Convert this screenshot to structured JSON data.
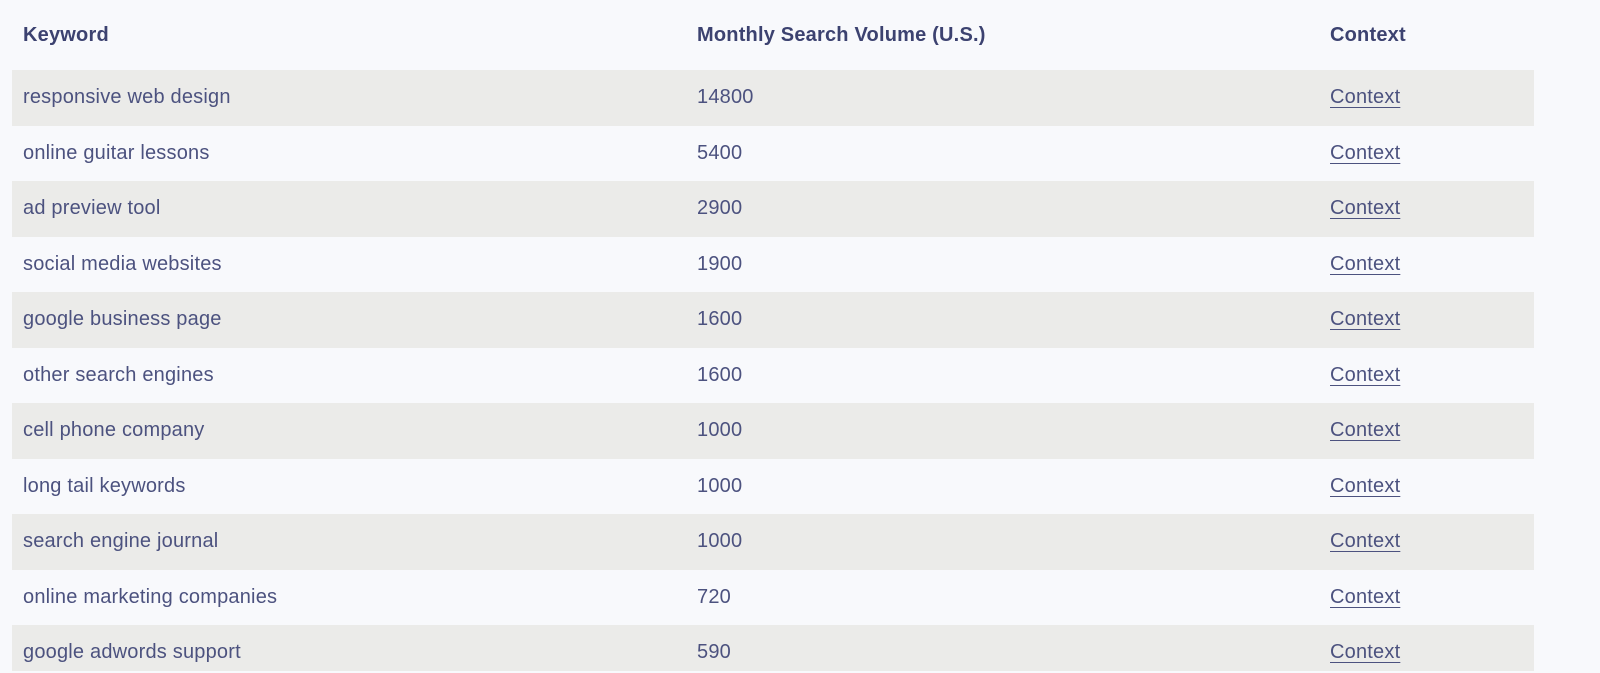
{
  "page": {
    "background": "#f8f9fc"
  },
  "table": {
    "colors": {
      "background": "#f8f9fc",
      "stripe": "#ebebe9",
      "header_text": "#3c4270",
      "row_text": "#4c527f"
    },
    "columns": [
      {
        "label": "Keyword"
      },
      {
        "label": "Monthly Search Volume (U.S.)"
      },
      {
        "label": "Context"
      }
    ],
    "rows": [
      {
        "keyword": "responsive web design",
        "volume": "14800",
        "context_label": "Context"
      },
      {
        "keyword": "online guitar lessons",
        "volume": "5400",
        "context_label": "Context"
      },
      {
        "keyword": "ad preview tool",
        "volume": "2900",
        "context_label": "Context"
      },
      {
        "keyword": "social media websites",
        "volume": "1900",
        "context_label": "Context"
      },
      {
        "keyword": "google business page",
        "volume": "1600",
        "context_label": "Context"
      },
      {
        "keyword": "other search engines",
        "volume": "1600",
        "context_label": "Context"
      },
      {
        "keyword": "cell phone company",
        "volume": "1000",
        "context_label": "Context"
      },
      {
        "keyword": "long tail keywords",
        "volume": "1000",
        "context_label": "Context"
      },
      {
        "keyword": "search engine journal",
        "volume": "1000",
        "context_label": "Context"
      },
      {
        "keyword": "online marketing companies",
        "volume": "720",
        "context_label": "Context"
      },
      {
        "keyword": "google adwords support",
        "volume": "590",
        "context_label": "Context"
      }
    ]
  }
}
